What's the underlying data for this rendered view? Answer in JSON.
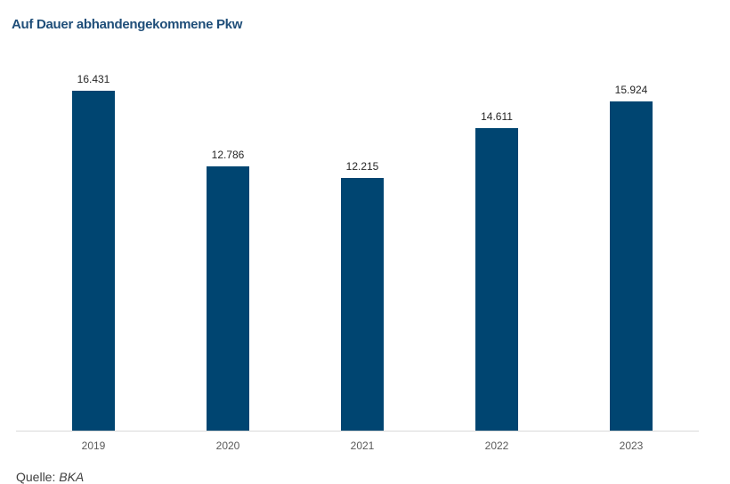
{
  "title": "Auf Dauer abhandengekommene Pkw",
  "source_label": "Quelle:",
  "source_value": "BKA",
  "colors": {
    "bar": "#004571",
    "title": "#1f4e79",
    "axis": "#d9d9d9"
  },
  "chart_data": {
    "type": "bar",
    "title": "Auf Dauer abhandengekommene Pkw",
    "categories": [
      "2019",
      "2020",
      "2021",
      "2022",
      "2023"
    ],
    "values": [
      16431,
      12786,
      12215,
      14611,
      15924
    ],
    "value_labels": [
      "16.431",
      "12.786",
      "12.215",
      "14.611",
      "15.924"
    ],
    "xlabel": "",
    "ylabel": "",
    "ylim": [
      0,
      16431
    ],
    "grid": false,
    "legend": null,
    "annotations": [
      "Quelle: BKA"
    ]
  }
}
